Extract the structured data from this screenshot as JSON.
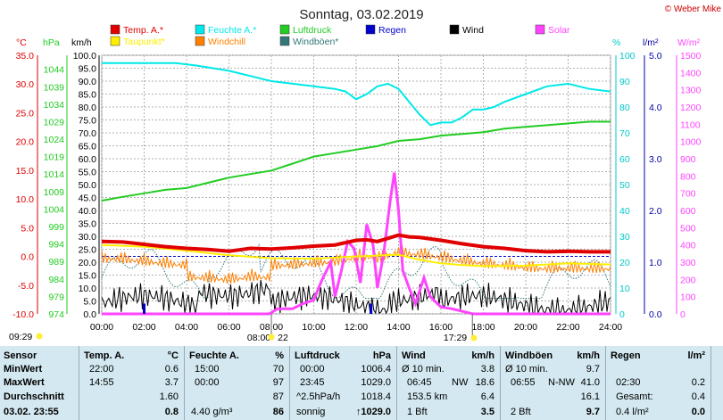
{
  "title": "Sonntag, 03.02.2019",
  "copyright": "© Weber Mike",
  "chart_data": {
    "type": "line",
    "x_range_hours": [
      0,
      24
    ],
    "x_ticks": [
      "00:00",
      "02:00",
      "04:00",
      "06:00",
      "08:00",
      "10:00",
      "12:00",
      "14:00",
      "16:00",
      "18:00",
      "20:00",
      "22:00",
      "24:00"
    ],
    "axes": {
      "temp": {
        "unit": "°C",
        "range": [
          -10,
          35
        ],
        "ticks": [
          "35.0",
          "30.0",
          "25.0",
          "20.0",
          "15.0",
          "10.0",
          "5.0",
          "0.0",
          "-5.0",
          "-10.0"
        ],
        "color": "#e00000"
      },
      "pressure": {
        "unit": "hPa",
        "range": [
          974,
          1048
        ],
        "ticks": [
          "1044",
          "1039",
          "1034",
          "1029",
          "1024",
          "1019",
          "1014",
          "1009",
          "1004",
          "999",
          "994",
          "989",
          "984",
          "979",
          "974"
        ],
        "color": "#22cc22"
      },
      "wind": {
        "unit": "km/h",
        "range": [
          0,
          100
        ],
        "ticks": [
          "100.0",
          "95.0",
          "90.0",
          "85.0",
          "80.0",
          "75.0",
          "70.0",
          "65.0",
          "60.0",
          "55.0",
          "50.0",
          "45.0",
          "40.0",
          "35.0",
          "30.0",
          "25.0",
          "20.0",
          "15.0",
          "10.0",
          "5.0",
          "0.0"
        ],
        "color": "#000000"
      },
      "humidity": {
        "unit": "%",
        "range": [
          0,
          100
        ],
        "ticks": [
          "100",
          "90",
          "80",
          "70",
          "60",
          "50",
          "40",
          "30",
          "20",
          "10",
          "0"
        ],
        "color": "#00c8c8"
      },
      "rain": {
        "unit": "l/m²",
        "range": [
          0,
          5
        ],
        "ticks": [
          "5.0",
          "4.0",
          "3.0",
          "2.0",
          "1.0",
          "0.0"
        ],
        "color": "#0000aa"
      },
      "solar": {
        "unit": "W/m²",
        "range": [
          0,
          1500
        ],
        "ticks": [
          "1500",
          "1400",
          "1300",
          "1200",
          "1100",
          "1000",
          "900",
          "800",
          "700",
          "600",
          "500",
          "400",
          "300",
          "200",
          "100",
          "0"
        ],
        "color": "#ff44ff"
      }
    },
    "legend": [
      {
        "name": "Temp. A.*",
        "color": "#e00000"
      },
      {
        "name": "Feuchte A.*",
        "color": "#00e8e8"
      },
      {
        "name": "Luftdruck",
        "color": "#22cc22"
      },
      {
        "name": "Regen",
        "color": "#0000cc"
      },
      {
        "name": "Wind",
        "color": "#000000"
      },
      {
        "name": "Solar",
        "color": "#ff44ff"
      },
      {
        "name": "Taupunkt*",
        "color": "#ffee00"
      },
      {
        "name": "Windchill",
        "color": "#ff8000"
      },
      {
        "name": "Windböen*",
        "color": "#337777"
      }
    ],
    "series": {
      "humidity": {
        "axis": "humidity",
        "points": [
          [
            0,
            97
          ],
          [
            2,
            97
          ],
          [
            3.5,
            97
          ],
          [
            4.5,
            96
          ],
          [
            6,
            94
          ],
          [
            7,
            92
          ],
          [
            8,
            90
          ],
          [
            9,
            89
          ],
          [
            10,
            88
          ],
          [
            11,
            87
          ],
          [
            11.5,
            86
          ],
          [
            12,
            83
          ],
          [
            12.5,
            85
          ],
          [
            13,
            88
          ],
          [
            13.5,
            89
          ],
          [
            14,
            87
          ],
          [
            14.5,
            82
          ],
          [
            15,
            77
          ],
          [
            15.5,
            73
          ],
          [
            16,
            74
          ],
          [
            16.5,
            74
          ],
          [
            17,
            76
          ],
          [
            17.5,
            79
          ],
          [
            18,
            79
          ],
          [
            18.5,
            80
          ],
          [
            19,
            82
          ],
          [
            20,
            85
          ],
          [
            21,
            88
          ],
          [
            22,
            89
          ],
          [
            23,
            87
          ],
          [
            24,
            86
          ]
        ]
      },
      "pressure": {
        "axis": "pressure",
        "points": [
          [
            0,
            1006.4
          ],
          [
            1,
            1007.5
          ],
          [
            2,
            1008.5
          ],
          [
            3,
            1009.5
          ],
          [
            4,
            1010
          ],
          [
            5,
            1011.5
          ],
          [
            6,
            1013
          ],
          [
            7,
            1014
          ],
          [
            8,
            1015
          ],
          [
            9,
            1017
          ],
          [
            10,
            1019
          ],
          [
            11,
            1020
          ],
          [
            12,
            1021
          ],
          [
            13,
            1022
          ],
          [
            14,
            1023.5
          ],
          [
            15,
            1024
          ],
          [
            16,
            1025
          ],
          [
            17,
            1025.5
          ],
          [
            18,
            1026
          ],
          [
            19,
            1027
          ],
          [
            20,
            1027.5
          ],
          [
            21,
            1028
          ],
          [
            22,
            1028.5
          ],
          [
            23,
            1029
          ],
          [
            24,
            1029
          ]
        ]
      },
      "temperature": {
        "axis": "temp",
        "points": [
          [
            0,
            2.6
          ],
          [
            1,
            2.5
          ],
          [
            2,
            2.1
          ],
          [
            3,
            1.7
          ],
          [
            4,
            1.4
          ],
          [
            5,
            1.2
          ],
          [
            6,
            0.9
          ],
          [
            7,
            1.4
          ],
          [
            8,
            1.3
          ],
          [
            9,
            1.5
          ],
          [
            10,
            1.8
          ],
          [
            11,
            2.0
          ],
          [
            12,
            2.8
          ],
          [
            12.5,
            2.9
          ],
          [
            13,
            2.6
          ],
          [
            14,
            3.7
          ],
          [
            14.5,
            3.4
          ],
          [
            15,
            3.3
          ],
          [
            16,
            2.8
          ],
          [
            17,
            2.2
          ],
          [
            18,
            1.7
          ],
          [
            19,
            1.4
          ],
          [
            20,
            1.0
          ],
          [
            21,
            0.8
          ],
          [
            22,
            0.9
          ],
          [
            23,
            0.8
          ],
          [
            24,
            0.8
          ]
        ]
      },
      "dewpoint": {
        "axis": "temp",
        "points": [
          [
            0,
            2.0
          ],
          [
            2,
            1.7
          ],
          [
            4,
            1.0
          ],
          [
            6,
            0.2
          ],
          [
            8,
            -0.3
          ],
          [
            10,
            -0.4
          ],
          [
            12,
            0.0
          ],
          [
            14,
            0.3
          ],
          [
            15,
            -0.6
          ],
          [
            16,
            -1.2
          ],
          [
            17,
            -1.5
          ],
          [
            18,
            -1.7
          ],
          [
            20,
            -1.6
          ],
          [
            22,
            -1.2
          ],
          [
            24,
            -1.4
          ]
        ]
      },
      "solar": {
        "axis": "solar",
        "points": [
          [
            0,
            0
          ],
          [
            7.9,
            0
          ],
          [
            8.3,
            30
          ],
          [
            9,
            30
          ],
          [
            9.5,
            60
          ],
          [
            10,
            80
          ],
          [
            10.4,
            200
          ],
          [
            10.8,
            300
          ],
          [
            11,
            100
          ],
          [
            11.3,
            250
          ],
          [
            11.6,
            420
          ],
          [
            11.9,
            380
          ],
          [
            12.2,
            180
          ],
          [
            12.5,
            520
          ],
          [
            12.8,
            400
          ],
          [
            13,
            150
          ],
          [
            13.3,
            350
          ],
          [
            13.6,
            650
          ],
          [
            13.8,
            820
          ],
          [
            14,
            600
          ],
          [
            14.2,
            250
          ],
          [
            14.5,
            150
          ],
          [
            14.8,
            60
          ],
          [
            15.2,
            210
          ],
          [
            15.5,
            100
          ],
          [
            16,
            40
          ],
          [
            16.5,
            30
          ],
          [
            17,
            15
          ],
          [
            17.5,
            0
          ],
          [
            24,
            0
          ]
        ]
      }
    },
    "rain_markers": [
      {
        "hour": 2.0,
        "amount": 0.2
      },
      {
        "hour": 12.7,
        "amount": 0.2
      }
    ],
    "sun_times": [
      "08:00",
      "17:29"
    ],
    "sunrise_label": "08:00",
    "sunrise_moon": "22",
    "sunset_label": "17:29",
    "moon_time": "09:29"
  },
  "table": {
    "sensor": {
      "header": "Sensor",
      "min": "MinWert",
      "max": "MaxWert",
      "avg": "Durchschnitt",
      "now": "03.02. 23:55"
    },
    "temp": {
      "header": "Temp. A.",
      "unit": "°C",
      "min_time": "22:00",
      "min": "0.6",
      "max_time": "14:55",
      "max": "3.7",
      "avg": "1.60",
      "now": "0.8"
    },
    "humidity": {
      "header": "Feuchte A.",
      "unit": "%",
      "min_time": "15:00",
      "min": "70",
      "max_time": "00:00",
      "max": "97",
      "avg": "87",
      "now_abs": "4.40 g/m³",
      "now": "86"
    },
    "pressure": {
      "header": "Luftdruck",
      "unit": "hPa",
      "min_time": "00:00",
      "min": "1006.4",
      "max_time": "23:45",
      "max": "1029.0",
      "avg_label": "^2.5hPa/h",
      "avg": "1018.4",
      "now_label": "sonnig",
      "now": "↑1029.0"
    },
    "wind": {
      "header": "Wind",
      "unit": "km/h",
      "min_label": "Ø 10 min.",
      "min": "3.8",
      "max_time": "06:45",
      "max_dir": "NW",
      "max": "18.6",
      "avg_label": "153.5 km",
      "avg": "6.4",
      "now_label": "1 Bft",
      "now": "3.5"
    },
    "gust": {
      "header": "Windböen",
      "unit": "km/h",
      "min_label": "Ø 10 min.",
      "min": "9.7",
      "max_time": "06:55",
      "max_dir": "N-NW",
      "max": "41.0",
      "avg": "16.1",
      "now_label": "2 Bft",
      "now": "9.7"
    },
    "rain": {
      "header": "Regen",
      "unit": "l/m²",
      "max_time": "02:30",
      "max": "0.2",
      "avg_label": "Gesamt:",
      "avg": "0.4",
      "now_label": "0.4 l/m²",
      "now": "0.0"
    }
  }
}
